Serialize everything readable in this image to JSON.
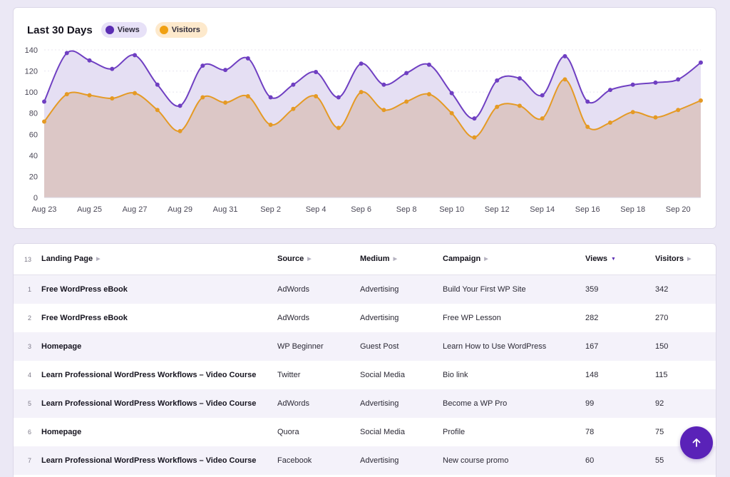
{
  "chart": {
    "title": "Last 30 Days",
    "legend": [
      {
        "key": "views",
        "label": "Views"
      },
      {
        "key": "visitors",
        "label": "Visitors"
      }
    ]
  },
  "chart_data": {
    "type": "area",
    "title": "Last 30 Days",
    "xlabel": "",
    "ylabel": "",
    "ylim": [
      0,
      140
    ],
    "y_ticks": [
      0,
      20,
      40,
      60,
      80,
      100,
      120,
      140
    ],
    "x_tick_labels": [
      "Aug 23",
      "Aug 25",
      "Aug 27",
      "Aug 29",
      "Aug 31",
      "Sep 2",
      "Sep 4",
      "Sep 6",
      "Sep 8",
      "Sep 10",
      "Sep 12",
      "Sep 14",
      "Sep 16",
      "Sep 18",
      "Sep 20"
    ],
    "x": [
      "Aug 23",
      "Aug 24",
      "Aug 25",
      "Aug 26",
      "Aug 27",
      "Aug 28",
      "Aug 29",
      "Aug 30",
      "Aug 31",
      "Sep 1",
      "Sep 2",
      "Sep 3",
      "Sep 4",
      "Sep 5",
      "Sep 6",
      "Sep 7",
      "Sep 8",
      "Sep 9",
      "Sep 10",
      "Sep 11",
      "Sep 12",
      "Sep 13",
      "Sep 14",
      "Sep 15",
      "Sep 16",
      "Sep 17",
      "Sep 18",
      "Sep 19",
      "Sep 20",
      "Sep 21"
    ],
    "grid": true,
    "legend_position": "top-left",
    "series": [
      {
        "name": "Views",
        "color": "#6f3fc2",
        "values": [
          91,
          137,
          130,
          122,
          135,
          107,
          87,
          125,
          121,
          132,
          95,
          107,
          119,
          95,
          127,
          107,
          118,
          126,
          99,
          75,
          111,
          113,
          97,
          134,
          91,
          102,
          107,
          109,
          112,
          128
        ]
      },
      {
        "name": "Visitors",
        "color": "#e59a24",
        "values": [
          72,
          98,
          97,
          94,
          99,
          83,
          63,
          95,
          90,
          96,
          69,
          84,
          96,
          66,
          100,
          83,
          91,
          98,
          80,
          57,
          86,
          87,
          75,
          112,
          67,
          71,
          81,
          76,
          83,
          92
        ]
      }
    ]
  },
  "table": {
    "count": "13",
    "columns": {
      "landing_page": "Landing Page",
      "source": "Source",
      "medium": "Medium",
      "campaign": "Campaign",
      "views": "Views",
      "visitors": "Visitors"
    },
    "rows": [
      {
        "idx": "1",
        "page": "Free WordPress eBook",
        "source": "AdWords",
        "medium": "Advertising",
        "campaign": "Build Your First WP Site",
        "views": "359",
        "visitors": "342"
      },
      {
        "idx": "2",
        "page": "Free WordPress eBook",
        "source": "AdWords",
        "medium": "Advertising",
        "campaign": "Free WP Lesson",
        "views": "282",
        "visitors": "270"
      },
      {
        "idx": "3",
        "page": "Homepage",
        "source": "WP Beginner",
        "medium": "Guest Post",
        "campaign": "Learn How to Use WordPress",
        "views": "167",
        "visitors": "150"
      },
      {
        "idx": "4",
        "page": "Learn Professional WordPress Workflows – Video Course",
        "source": "Twitter",
        "medium": "Social Media",
        "campaign": "Bio link",
        "views": "148",
        "visitors": "115"
      },
      {
        "idx": "5",
        "page": "Learn Professional WordPress Workflows – Video Course",
        "source": "AdWords",
        "medium": "Advertising",
        "campaign": "Become a WP Pro",
        "views": "99",
        "visitors": "92"
      },
      {
        "idx": "6",
        "page": "Homepage",
        "source": "Quora",
        "medium": "Social Media",
        "campaign": "Profile",
        "views": "78",
        "visitors": "75"
      },
      {
        "idx": "7",
        "page": "Learn Professional WordPress Workflows – Video Course",
        "source": "Facebook",
        "medium": "Advertising",
        "campaign": "New course promo",
        "views": "60",
        "visitors": "55"
      }
    ]
  },
  "scroll_top_icon": "arrow-up-icon"
}
